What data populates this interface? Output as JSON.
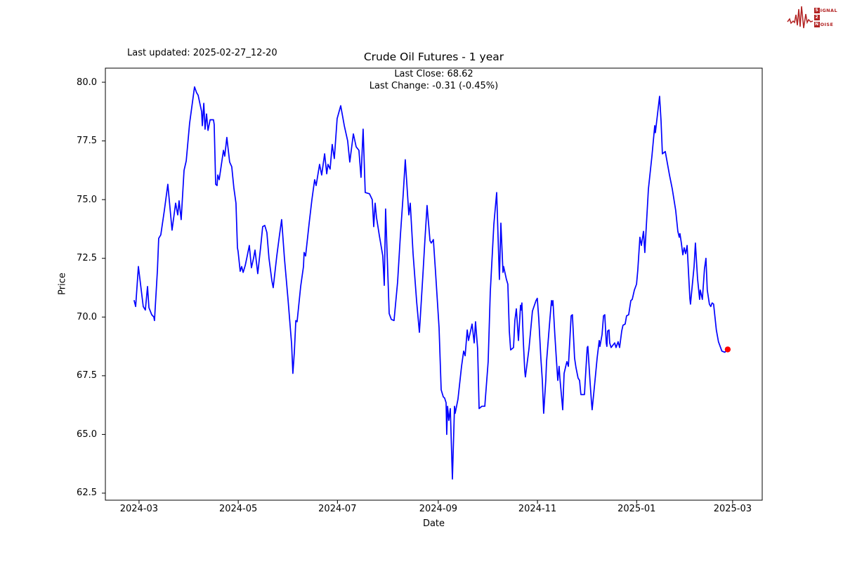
{
  "logo": {
    "row1_boxed": "S",
    "row1_rest": "IGNAL",
    "row2_boxed": "2",
    "row2_rest": "",
    "row3_boxed": "N",
    "row3_rest": "OISE",
    "color": "#b22222"
  },
  "header": {
    "last_updated": "Last updated: 2025-02-27_12-20"
  },
  "chart_data": {
    "type": "line",
    "title": "Crude Oil Futures - 1 year",
    "subtitle_line1": "Last Close: 68.62",
    "subtitle_line2": "Last Change: -0.31 (-0.45%)",
    "xlabel": "Date",
    "ylabel": "Price",
    "legend": "none",
    "grid": false,
    "line_color": "#0000ff",
    "marker_color": "#ff0000",
    "last_close": 68.62,
    "last_change": -0.31,
    "last_change_pct": "-0.45%",
    "x_unit": "days since 2024-02-27",
    "xlim": [
      -17.7,
      386.2
    ],
    "ylim": [
      62.2,
      80.6
    ],
    "x_ticks": [
      {
        "t": 3,
        "label": "2024-03"
      },
      {
        "t": 64,
        "label": "2024-05"
      },
      {
        "t": 125,
        "label": "2024-07"
      },
      {
        "t": 187,
        "label": "2024-09"
      },
      {
        "t": 248,
        "label": "2024-11"
      },
      {
        "t": 309,
        "label": "2025-01"
      },
      {
        "t": 368,
        "label": "2025-03"
      }
    ],
    "y_ticks": [
      {
        "v": 62.5,
        "label": "62.5"
      },
      {
        "v": 65.0,
        "label": "65.0"
      },
      {
        "v": 67.5,
        "label": "67.5"
      },
      {
        "v": 70.0,
        "label": "70.0"
      },
      {
        "v": 72.5,
        "label": "72.5"
      },
      {
        "v": 75.0,
        "label": "75.0"
      },
      {
        "v": 77.5,
        "label": "77.5"
      },
      {
        "v": 80.0,
        "label": "80.0"
      }
    ],
    "points": [
      [
        0,
        70.7
      ],
      [
        0.9,
        70.45
      ],
      [
        2.6,
        72.15
      ],
      [
        5.6,
        70.45
      ],
      [
        6.9,
        70.3
      ],
      [
        8.2,
        71.3
      ],
      [
        9.1,
        70.4
      ],
      [
        10.8,
        70.1
      ],
      [
        12.1,
        70.0
      ],
      [
        12.5,
        69.85
      ],
      [
        14.3,
        72.0
      ],
      [
        15.1,
        73.35
      ],
      [
        16.4,
        73.5
      ],
      [
        18.6,
        74.55
      ],
      [
        20.7,
        75.65
      ],
      [
        23.3,
        73.7
      ],
      [
        25.5,
        74.85
      ],
      [
        26.8,
        74.35
      ],
      [
        27.6,
        74.95
      ],
      [
        28.9,
        74.15
      ],
      [
        30.7,
        76.25
      ],
      [
        32.0,
        76.65
      ],
      [
        34.1,
        78.25
      ],
      [
        37.1,
        79.8
      ],
      [
        38.4,
        79.55
      ],
      [
        39.3,
        79.45
      ],
      [
        41.5,
        78.75
      ],
      [
        41.9,
        78.15
      ],
      [
        42.8,
        79.1
      ],
      [
        43.6,
        78.0
      ],
      [
        44.5,
        78.65
      ],
      [
        45.4,
        77.95
      ],
      [
        46.7,
        78.4
      ],
      [
        48.8,
        78.4
      ],
      [
        49.2,
        78.2
      ],
      [
        50.1,
        75.65
      ],
      [
        51.0,
        75.6
      ],
      [
        51.4,
        76.05
      ],
      [
        52.3,
        75.85
      ],
      [
        54.9,
        77.1
      ],
      [
        55.7,
        76.85
      ],
      [
        57.0,
        77.65
      ],
      [
        58.7,
        76.6
      ],
      [
        60.0,
        76.4
      ],
      [
        61.3,
        75.5
      ],
      [
        62.6,
        74.85
      ],
      [
        63.5,
        72.95
      ],
      [
        63.9,
        72.8
      ],
      [
        65.2,
        71.95
      ],
      [
        66.1,
        72.15
      ],
      [
        67.0,
        71.9
      ],
      [
        68.3,
        72.2
      ],
      [
        69.5,
        72.6
      ],
      [
        70.8,
        73.05
      ],
      [
        72.1,
        72.1
      ],
      [
        73.4,
        72.5
      ],
      [
        74.3,
        72.85
      ],
      [
        76.0,
        71.85
      ],
      [
        77.8,
        73.0
      ],
      [
        79.0,
        73.85
      ],
      [
        80.3,
        73.9
      ],
      [
        81.6,
        73.6
      ],
      [
        82.9,
        72.5
      ],
      [
        84.7,
        71.55
      ],
      [
        85.5,
        71.25
      ],
      [
        87.7,
        72.6
      ],
      [
        89.4,
        73.5
      ],
      [
        90.7,
        74.15
      ],
      [
        92.4,
        72.5
      ],
      [
        94.6,
        70.75
      ],
      [
        96.8,
        68.85
      ],
      [
        97.6,
        67.6
      ],
      [
        98.5,
        68.5
      ],
      [
        99.4,
        69.85
      ],
      [
        100.2,
        69.8
      ],
      [
        102.4,
        71.3
      ],
      [
        104.1,
        72.15
      ],
      [
        104.5,
        72.75
      ],
      [
        105.4,
        72.6
      ],
      [
        107.6,
        74.0
      ],
      [
        109.3,
        75.0
      ],
      [
        111.0,
        75.85
      ],
      [
        111.9,
        75.6
      ],
      [
        114.0,
        76.5
      ],
      [
        115.3,
        76.05
      ],
      [
        117.1,
        76.95
      ],
      [
        118.4,
        76.1
      ],
      [
        119.2,
        76.5
      ],
      [
        120.5,
        76.3
      ],
      [
        121.8,
        77.35
      ],
      [
        123.1,
        76.75
      ],
      [
        124.8,
        78.45
      ],
      [
        127.0,
        79.0
      ],
      [
        129.2,
        78.15
      ],
      [
        131.3,
        77.5
      ],
      [
        132.6,
        76.6
      ],
      [
        134.8,
        77.8
      ],
      [
        136.5,
        77.25
      ],
      [
        138.2,
        77.1
      ],
      [
        139.5,
        75.95
      ],
      [
        140.8,
        78.0
      ],
      [
        142.1,
        75.3
      ],
      [
        144.7,
        75.25
      ],
      [
        146.4,
        75.0
      ],
      [
        147.3,
        73.85
      ],
      [
        148.2,
        74.85
      ],
      [
        149.0,
        74.25
      ],
      [
        150.8,
        73.45
      ],
      [
        152.9,
        72.6
      ],
      [
        153.8,
        71.35
      ],
      [
        154.6,
        74.6
      ],
      [
        156.8,
        70.15
      ],
      [
        158.1,
        69.9
      ],
      [
        159.8,
        69.85
      ],
      [
        162.0,
        71.5
      ],
      [
        163.7,
        73.45
      ],
      [
        165.4,
        75.2
      ],
      [
        166.7,
        76.7
      ],
      [
        168.9,
        74.35
      ],
      [
        169.8,
        74.85
      ],
      [
        171.5,
        72.7
      ],
      [
        173.7,
        70.65
      ],
      [
        175.4,
        69.35
      ],
      [
        177.5,
        71.75
      ],
      [
        178.8,
        73.3
      ],
      [
        180.1,
        74.75
      ],
      [
        181.9,
        73.25
      ],
      [
        182.7,
        73.15
      ],
      [
        184.0,
        73.3
      ],
      [
        185.3,
        71.95
      ],
      [
        187.5,
        69.55
      ],
      [
        188.8,
        66.9
      ],
      [
        190.1,
        66.6
      ],
      [
        190.9,
        66.55
      ],
      [
        191.8,
        66.35
      ],
      [
        192.2,
        65.0
      ],
      [
        192.7,
        66.2
      ],
      [
        193.5,
        65.6
      ],
      [
        194.4,
        66.1
      ],
      [
        195.7,
        63.1
      ],
      [
        197.0,
        66.2
      ],
      [
        197.4,
        65.9
      ],
      [
        199.1,
        66.5
      ],
      [
        201.3,
        67.9
      ],
      [
        202.6,
        68.55
      ],
      [
        203.5,
        68.35
      ],
      [
        204.8,
        69.45
      ],
      [
        205.6,
        69.0
      ],
      [
        207.8,
        69.7
      ],
      [
        209.1,
        68.9
      ],
      [
        209.9,
        69.8
      ],
      [
        211.2,
        68.65
      ],
      [
        212.1,
        66.1
      ],
      [
        213.8,
        66.2
      ],
      [
        215.6,
        66.2
      ],
      [
        217.7,
        68.1
      ],
      [
        219.0,
        71.05
      ],
      [
        221.2,
        73.95
      ],
      [
        222.9,
        75.3
      ],
      [
        224.6,
        71.6
      ],
      [
        225.5,
        74.0
      ],
      [
        226.8,
        71.9
      ],
      [
        227.2,
        72.15
      ],
      [
        228.9,
        71.6
      ],
      [
        229.8,
        71.4
      ],
      [
        230.7,
        69.4
      ],
      [
        231.5,
        68.6
      ],
      [
        233.3,
        68.7
      ],
      [
        234.1,
        69.85
      ],
      [
        235.0,
        70.35
      ],
      [
        236.3,
        69.0
      ],
      [
        237.6,
        70.5
      ],
      [
        238.0,
        70.3
      ],
      [
        238.4,
        70.6
      ],
      [
        239.3,
        69.0
      ],
      [
        240.2,
        67.7
      ],
      [
        240.6,
        67.45
      ],
      [
        242.8,
        68.65
      ],
      [
        244.9,
        70.25
      ],
      [
        247.1,
        70.7
      ],
      [
        247.9,
        70.8
      ],
      [
        248.8,
        69.95
      ],
      [
        250.1,
        68.25
      ],
      [
        251.0,
        67.3
      ],
      [
        251.8,
        65.9
      ],
      [
        253.1,
        67.3
      ],
      [
        253.6,
        68.1
      ],
      [
        255.7,
        69.95
      ],
      [
        256.6,
        70.7
      ],
      [
        257.0,
        70.5
      ],
      [
        257.5,
        70.7
      ],
      [
        258.7,
        69.25
      ],
      [
        259.6,
        68.25
      ],
      [
        260.5,
        67.3
      ],
      [
        261.3,
        67.9
      ],
      [
        261.8,
        67.4
      ],
      [
        263.1,
        66.4
      ],
      [
        263.5,
        66.05
      ],
      [
        264.4,
        67.6
      ],
      [
        265.7,
        68.0
      ],
      [
        266.1,
        68.1
      ],
      [
        267.0,
        67.9
      ],
      [
        268.7,
        70.05
      ],
      [
        269.5,
        70.1
      ],
      [
        270.8,
        68.25
      ],
      [
        271.7,
        67.85
      ],
      [
        273.0,
        67.4
      ],
      [
        273.9,
        67.3
      ],
      [
        274.7,
        66.7
      ],
      [
        276.9,
        66.7
      ],
      [
        277.3,
        67.2
      ],
      [
        278.6,
        68.7
      ],
      [
        279.0,
        68.75
      ],
      [
        280.3,
        67.3
      ],
      [
        281.2,
        66.4
      ],
      [
        281.6,
        66.05
      ],
      [
        283.4,
        67.3
      ],
      [
        284.7,
        68.25
      ],
      [
        286.0,
        69.0
      ],
      [
        286.4,
        68.75
      ],
      [
        287.7,
        69.25
      ],
      [
        288.6,
        70.05
      ],
      [
        289.4,
        70.1
      ],
      [
        290.3,
        68.9
      ],
      [
        290.7,
        68.75
      ],
      [
        291.1,
        69.4
      ],
      [
        292.0,
        69.45
      ],
      [
        292.4,
        68.9
      ],
      [
        293.3,
        68.7
      ],
      [
        295.5,
        68.9
      ],
      [
        296.3,
        68.7
      ],
      [
        297.6,
        68.95
      ],
      [
        298.5,
        68.7
      ],
      [
        299.8,
        69.4
      ],
      [
        300.6,
        69.65
      ],
      [
        301.9,
        69.7
      ],
      [
        302.8,
        70.05
      ],
      [
        304.1,
        70.1
      ],
      [
        305.4,
        70.7
      ],
      [
        306.3,
        70.75
      ],
      [
        307.6,
        71.15
      ],
      [
        308.9,
        71.4
      ],
      [
        309.7,
        72.0
      ],
      [
        311.0,
        73.4
      ],
      [
        311.9,
        73.05
      ],
      [
        313.2,
        73.65
      ],
      [
        314.0,
        72.75
      ],
      [
        316.2,
        75.45
      ],
      [
        318.4,
        76.85
      ],
      [
        320.1,
        78.15
      ],
      [
        320.5,
        77.85
      ],
      [
        323.1,
        79.4
      ],
      [
        324.0,
        78.35
      ],
      [
        324.8,
        76.95
      ],
      [
        326.6,
        77.05
      ],
      [
        329.2,
        76.05
      ],
      [
        330.9,
        75.45
      ],
      [
        333.0,
        74.55
      ],
      [
        334.3,
        73.65
      ],
      [
        335.2,
        73.4
      ],
      [
        335.6,
        73.55
      ],
      [
        336.5,
        73.15
      ],
      [
        337.4,
        72.65
      ],
      [
        338.2,
        72.95
      ],
      [
        339.1,
        72.7
      ],
      [
        340.0,
        73.05
      ],
      [
        341.7,
        70.8
      ],
      [
        342.1,
        70.55
      ],
      [
        344.3,
        72.15
      ],
      [
        345.1,
        73.15
      ],
      [
        346.4,
        71.65
      ],
      [
        347.7,
        70.75
      ],
      [
        348.1,
        71.15
      ],
      [
        349.4,
        70.75
      ],
      [
        350.7,
        72.05
      ],
      [
        351.6,
        72.5
      ],
      [
        352.4,
        71.15
      ],
      [
        353.7,
        70.55
      ],
      [
        354.6,
        70.45
      ],
      [
        355.4,
        70.6
      ],
      [
        356.3,
        70.55
      ],
      [
        358.0,
        69.45
      ],
      [
        359.3,
        68.95
      ],
      [
        361.4,
        68.55
      ],
      [
        363.2,
        68.5
      ],
      [
        365.0,
        68.62
      ]
    ]
  }
}
